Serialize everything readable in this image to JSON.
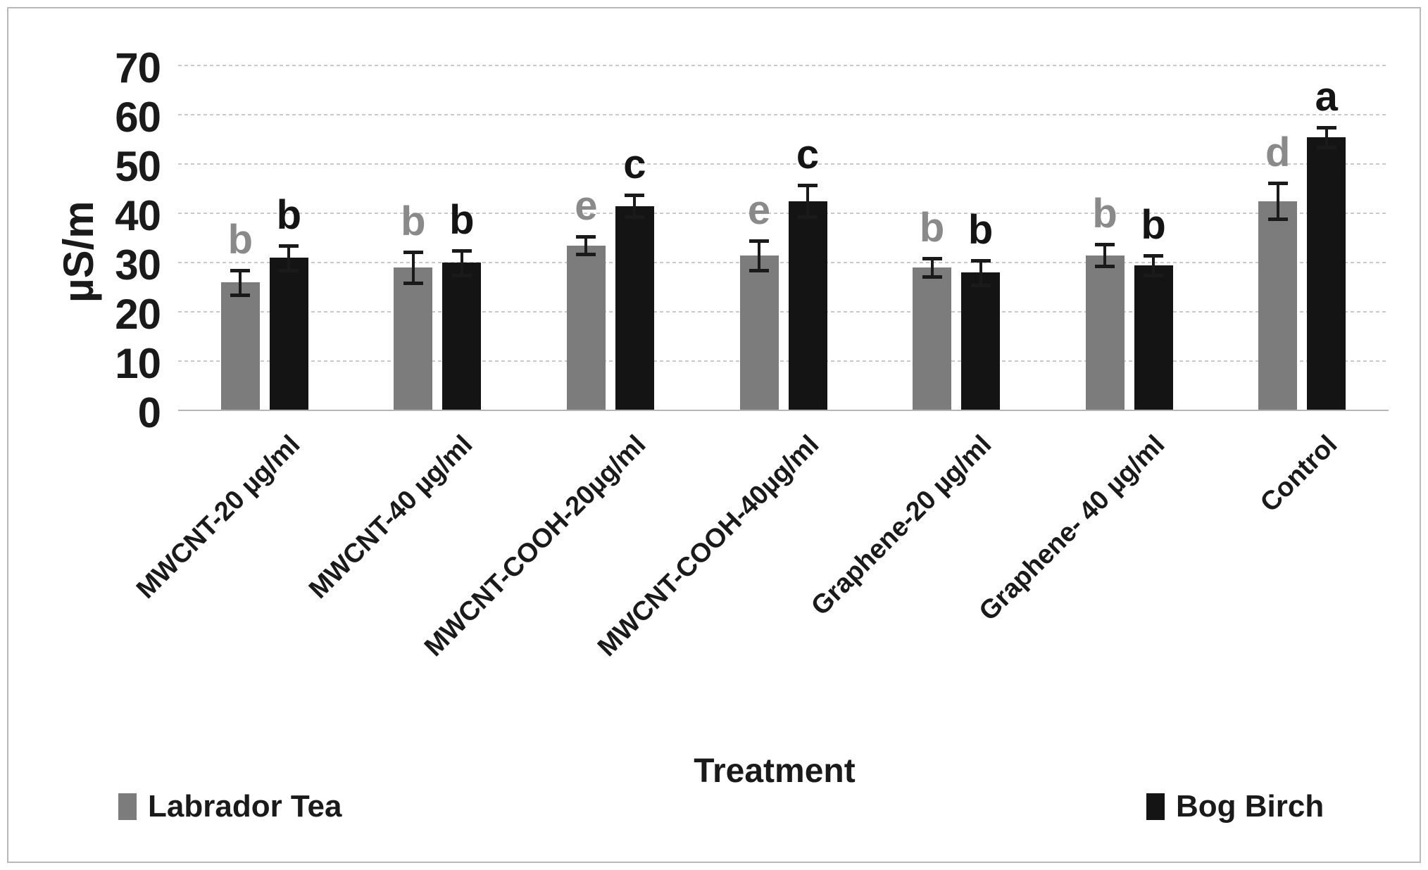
{
  "chart_data": {
    "type": "bar",
    "title": "",
    "xlabel": "Treatment",
    "ylabel": "µS/m",
    "ylim": [
      0,
      70
    ],
    "yticks": [
      0,
      10,
      20,
      30,
      40,
      50,
      60,
      70
    ],
    "grid": "horizontal-dotted",
    "legend_position": "bottom",
    "categories": [
      "MWCNT-20 µg/ml",
      "MWCNT-40 µg/ml",
      "MWCNT-COOH-20µg/ml",
      "MWCNT-COOH-40µg/ml",
      "Graphene-20 µg/ml",
      "Graphene- 40 µg/ml",
      "Control"
    ],
    "series": [
      {
        "name": "Labrador Tea",
        "color": "#7c7c7c",
        "letter_color": "#8a8a8a",
        "values": [
          26,
          29,
          33.5,
          31.5,
          29,
          31.5,
          42.5
        ],
        "errors": [
          2.5,
          3.2,
          1.8,
          3.0,
          1.8,
          2.2,
          3.6
        ],
        "letters": [
          "b",
          "b",
          "e",
          "e",
          "b",
          "b",
          "d"
        ]
      },
      {
        "name": "Bog Birch",
        "color": "#141414",
        "letter_color": "#141414",
        "values": [
          31,
          30,
          41.5,
          42.5,
          28,
          29.5,
          55.5
        ],
        "errors": [
          2.5,
          2.5,
          2.2,
          3.2,
          2.5,
          2.0,
          2.0
        ],
        "letters": [
          "b",
          "b",
          "c",
          "c",
          "b",
          "b",
          "a"
        ]
      }
    ]
  }
}
